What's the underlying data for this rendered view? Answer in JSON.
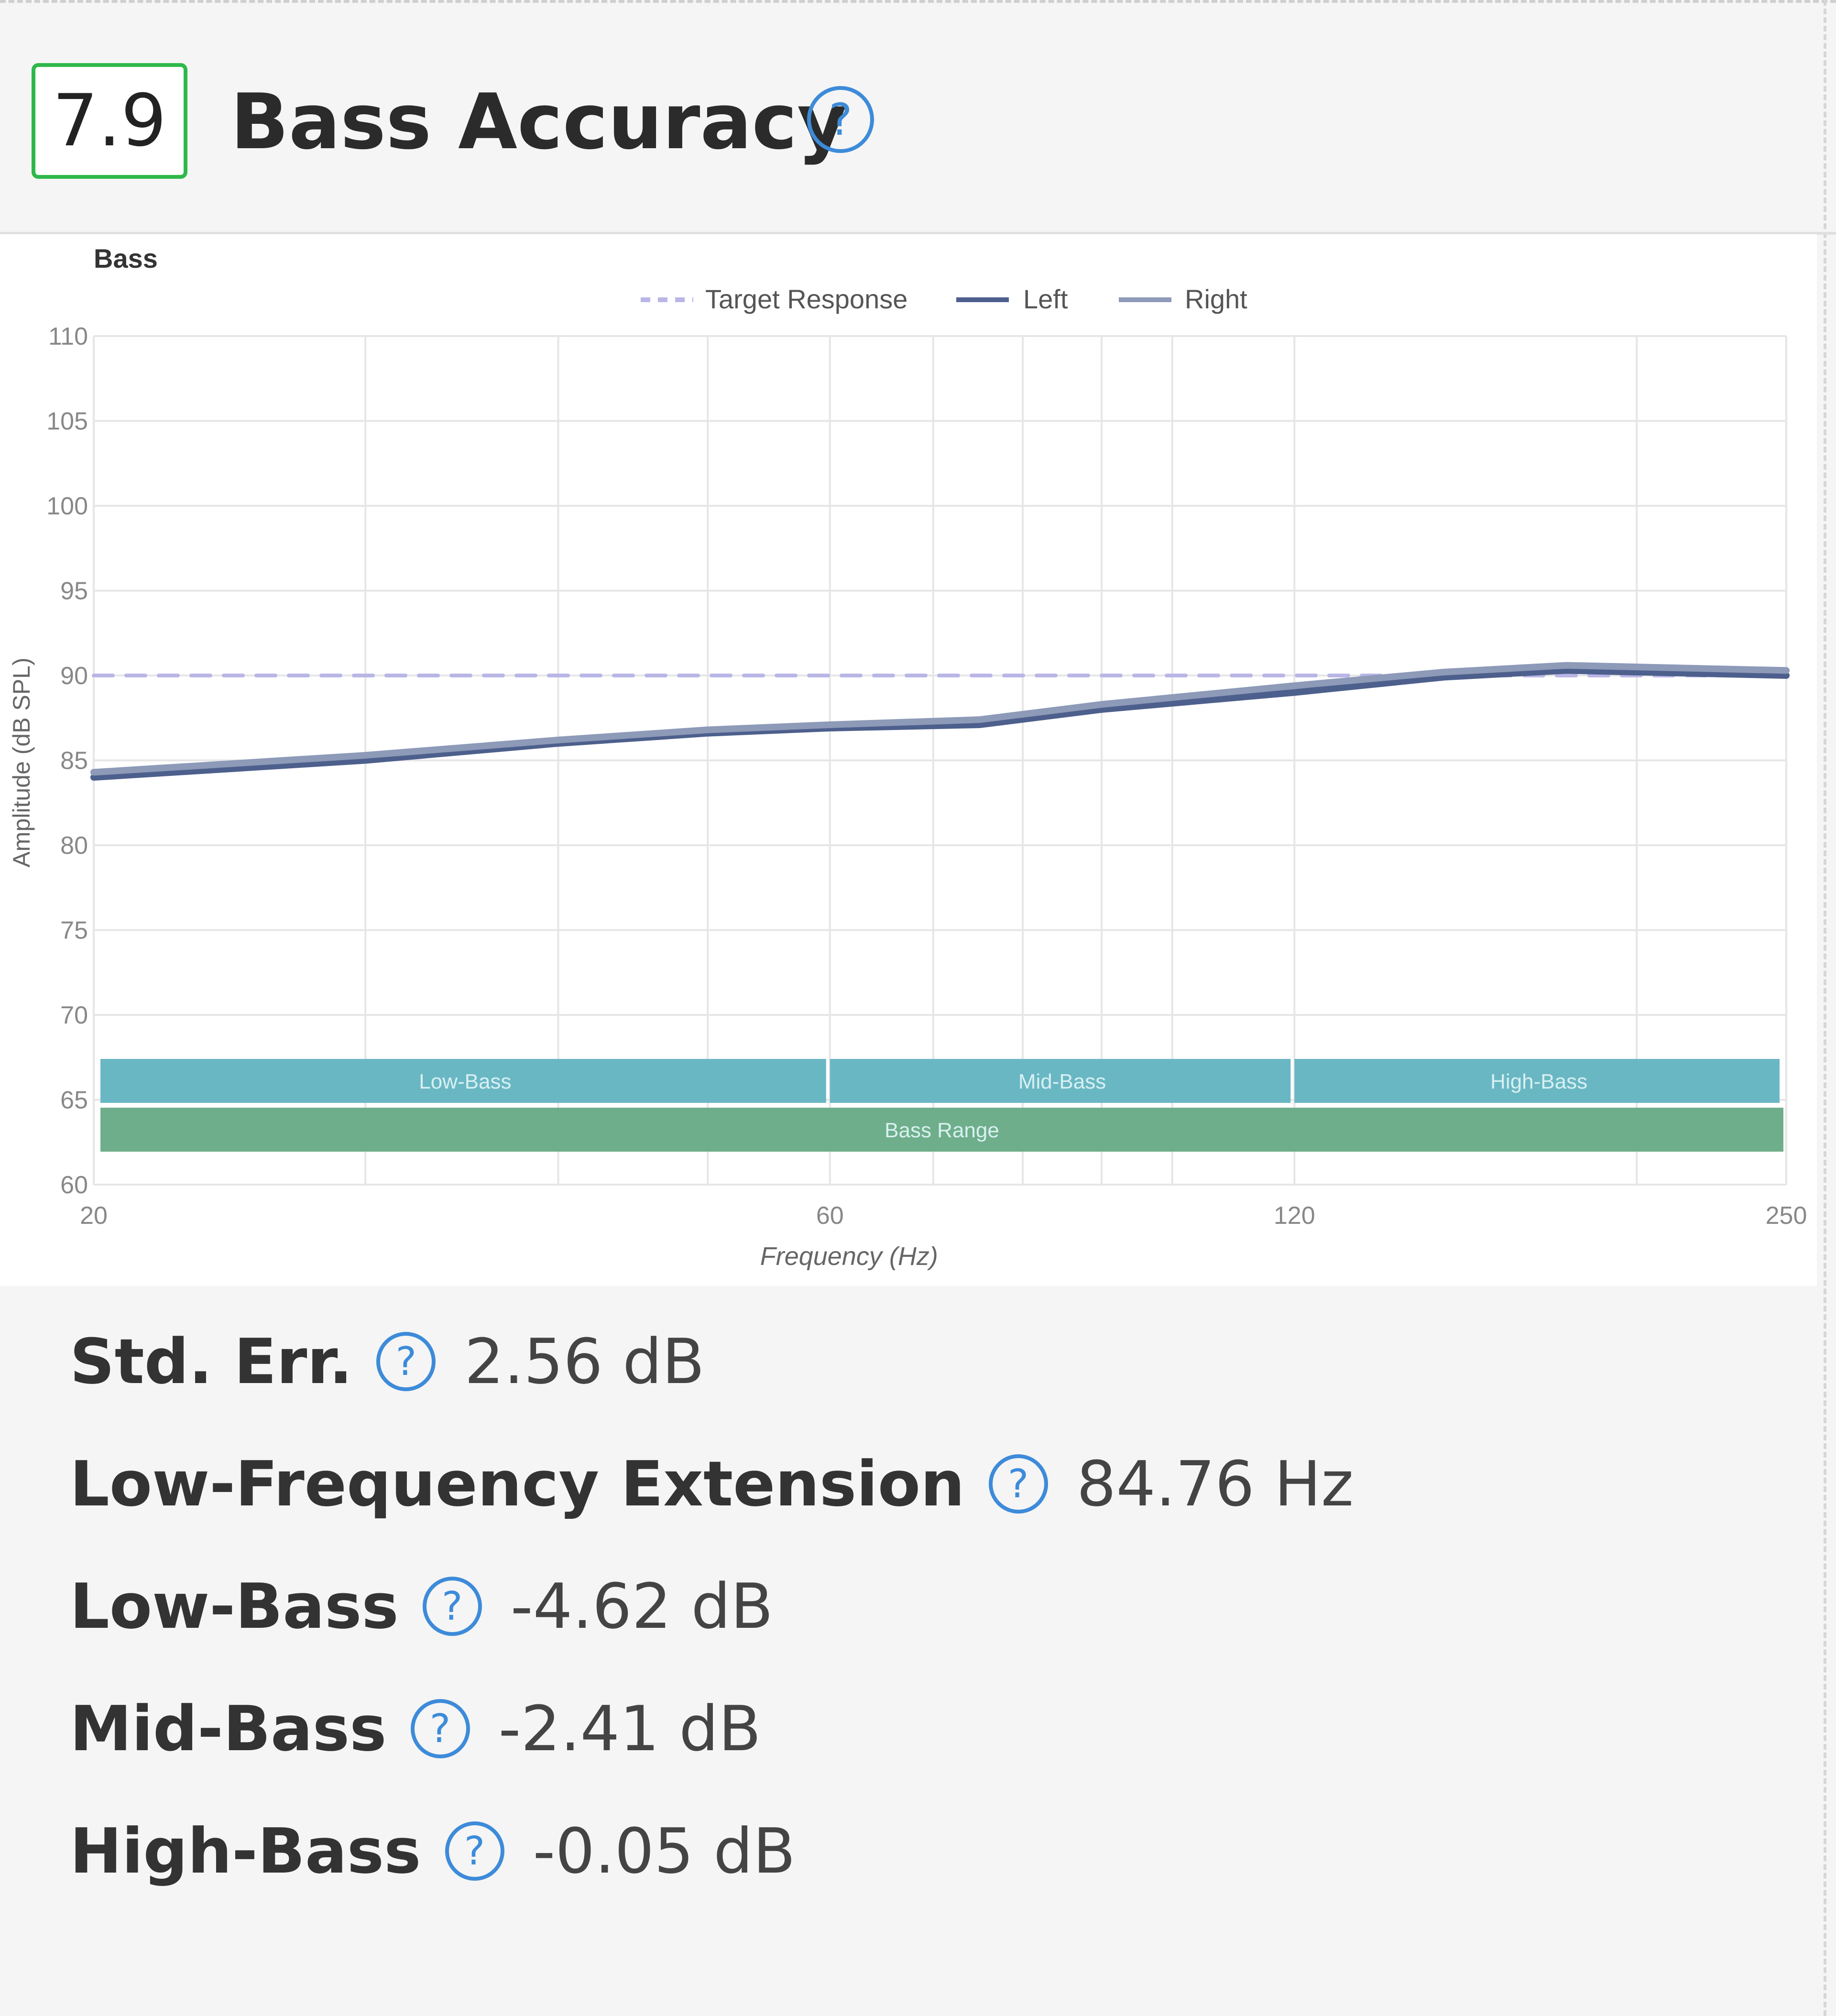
{
  "section": {
    "score": "7.9",
    "title": "Bass Accuracy",
    "help_glyph": "?"
  },
  "chart_data": {
    "type": "line",
    "title": "Bass",
    "xlabel": "Frequency (Hz)",
    "ylabel": "Amplitude (dB SPL)",
    "x_scale": "log",
    "xlim": [
      20,
      250
    ],
    "ylim": [
      60,
      110
    ],
    "x_ticks": [
      20,
      60,
      120,
      250
    ],
    "y_ticks": [
      60,
      65,
      70,
      75,
      80,
      85,
      90,
      95,
      100,
      105,
      110
    ],
    "grid": true,
    "legend_position": "top-center",
    "series": [
      {
        "name": "Target Response",
        "style": "dashed",
        "color": "#b9b6e6",
        "x": [
          20,
          250
        ],
        "y": [
          90,
          90
        ]
      },
      {
        "name": "Left",
        "style": "solid",
        "color": "#4d5f8c",
        "x": [
          20,
          30,
          40,
          50,
          60,
          75,
          90,
          120,
          150,
          180,
          250
        ],
        "y": [
          84.0,
          85.0,
          86.0,
          86.6,
          86.9,
          87.1,
          88.0,
          89.0,
          89.9,
          90.3,
          90.0
        ]
      },
      {
        "name": "Right",
        "style": "solid",
        "color": "#8d9ab8",
        "x": [
          20,
          30,
          40,
          50,
          60,
          75,
          90,
          120,
          150,
          180,
          250
        ],
        "y": [
          84.3,
          85.3,
          86.2,
          86.8,
          87.1,
          87.4,
          88.3,
          89.4,
          90.2,
          90.6,
          90.3
        ]
      }
    ],
    "bands": [
      {
        "label": "Low-Bass",
        "x_start": 20,
        "x_end": 60,
        "color": "#6ab7c4"
      },
      {
        "label": "Mid-Bass",
        "x_start": 60,
        "x_end": 120,
        "color": "#6ab7c4"
      },
      {
        "label": "High-Bass",
        "x_start": 120,
        "x_end": 250,
        "color": "#6ab7c4"
      },
      {
        "label": "Bass Range",
        "x_start": 20,
        "x_end": 250,
        "color": "#6fae8a"
      }
    ]
  },
  "metrics": [
    {
      "label": "Std. Err.",
      "value": "2.56 dB"
    },
    {
      "label": "Low-Frequency Extension",
      "value": "84.76 Hz"
    },
    {
      "label": "Low-Bass",
      "value": "-4.62 dB"
    },
    {
      "label": "Mid-Bass",
      "value": "-2.41 dB"
    },
    {
      "label": "High-Bass",
      "value": "-0.05 dB"
    }
  ]
}
